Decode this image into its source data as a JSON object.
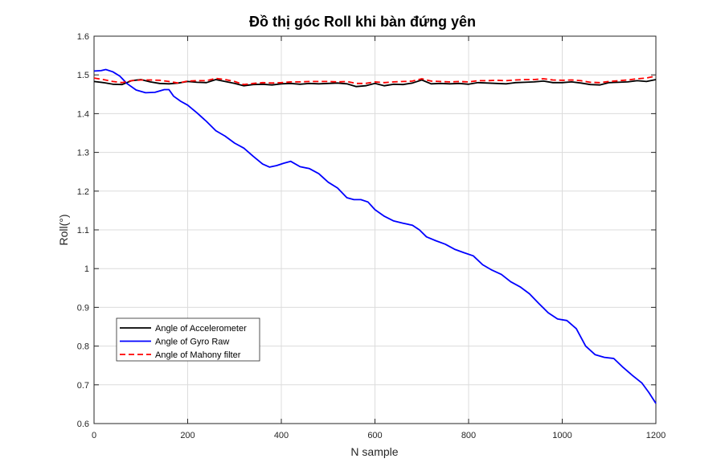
{
  "chart_data": {
    "type": "line",
    "title": "Đồ thị góc Roll khi bàn đứng yên",
    "xlabel": "N sample",
    "ylabel": "Roll(°)",
    "xlim": [
      0,
      1200
    ],
    "ylim": [
      0.6,
      1.6
    ],
    "xticks": [
      "0",
      "200",
      "400",
      "600",
      "800",
      "1000",
      "1200"
    ],
    "yticks": [
      "0.6",
      "0.7",
      "0.8",
      "0.9",
      "1",
      "1.1",
      "1.2",
      "1.3",
      "1.4",
      "1.5",
      "1.6"
    ],
    "grid": true,
    "legend_position": "bottom-left",
    "series": [
      {
        "name": "Angle of Accelerometer",
        "color": "#000000",
        "style": "solid",
        "x": [
          0,
          20,
          40,
          60,
          80,
          100,
          120,
          140,
          160,
          180,
          200,
          220,
          240,
          260,
          280,
          300,
          320,
          340,
          360,
          380,
          400,
          420,
          440,
          460,
          480,
          500,
          520,
          540,
          560,
          580,
          600,
          620,
          640,
          660,
          680,
          700,
          720,
          740,
          760,
          780,
          800,
          820,
          840,
          860,
          880,
          900,
          920,
          940,
          960,
          980,
          1000,
          1020,
          1040,
          1060,
          1080,
          1100,
          1120,
          1140,
          1160,
          1180,
          1200
        ],
        "y": [
          1.483,
          1.48,
          1.476,
          1.475,
          1.485,
          1.488,
          1.482,
          1.478,
          1.477,
          1.479,
          1.483,
          1.481,
          1.48,
          1.488,
          1.483,
          1.478,
          1.472,
          1.475,
          1.476,
          1.474,
          1.477,
          1.478,
          1.476,
          1.478,
          1.477,
          1.478,
          1.479,
          1.477,
          1.47,
          1.472,
          1.478,
          1.472,
          1.476,
          1.475,
          1.479,
          1.487,
          1.477,
          1.478,
          1.477,
          1.478,
          1.476,
          1.48,
          1.479,
          1.478,
          1.477,
          1.48,
          1.481,
          1.482,
          1.484,
          1.48,
          1.48,
          1.482,
          1.479,
          1.475,
          1.474,
          1.48,
          1.481,
          1.482,
          1.485,
          1.483,
          1.488
        ]
      },
      {
        "name": "Angle of Gyro Raw",
        "color": "#0000ff",
        "style": "solid",
        "x": [
          0,
          15,
          25,
          40,
          55,
          70,
          90,
          110,
          130,
          150,
          160,
          170,
          185,
          200,
          220,
          240,
          260,
          280,
          300,
          320,
          340,
          360,
          375,
          390,
          405,
          420,
          440,
          460,
          480,
          500,
          520,
          540,
          555,
          570,
          585,
          600,
          620,
          640,
          660,
          680,
          695,
          710,
          730,
          750,
          770,
          790,
          810,
          830,
          850,
          870,
          890,
          910,
          930,
          950,
          970,
          990,
          1010,
          1030,
          1050,
          1070,
          1090,
          1110,
          1130,
          1150,
          1170,
          1185,
          1200
        ],
        "y": [
          1.51,
          1.511,
          1.514,
          1.508,
          1.497,
          1.478,
          1.461,
          1.454,
          1.455,
          1.462,
          1.462,
          1.445,
          1.432,
          1.422,
          1.402,
          1.38,
          1.356,
          1.342,
          1.324,
          1.311,
          1.29,
          1.27,
          1.262,
          1.266,
          1.272,
          1.277,
          1.263,
          1.258,
          1.245,
          1.223,
          1.208,
          1.183,
          1.178,
          1.178,
          1.172,
          1.152,
          1.135,
          1.123,
          1.117,
          1.112,
          1.1,
          1.082,
          1.072,
          1.063,
          1.05,
          1.041,
          1.033,
          1.01,
          0.996,
          0.985,
          0.966,
          0.953,
          0.935,
          0.91,
          0.886,
          0.87,
          0.866,
          0.845,
          0.8,
          0.778,
          0.771,
          0.768,
          0.745,
          0.724,
          0.705,
          0.68,
          0.652
        ]
      },
      {
        "name": "Angle of Mahony filter",
        "color": "#ff0000",
        "style": "dashed",
        "x": [
          0,
          20,
          40,
          60,
          80,
          100,
          120,
          140,
          160,
          180,
          200,
          220,
          240,
          260,
          280,
          300,
          320,
          340,
          360,
          380,
          400,
          420,
          440,
          460,
          480,
          500,
          520,
          540,
          560,
          580,
          600,
          620,
          640,
          660,
          680,
          700,
          720,
          740,
          760,
          780,
          800,
          820,
          840,
          860,
          880,
          900,
          920,
          940,
          960,
          980,
          1000,
          1020,
          1040,
          1060,
          1080,
          1100,
          1120,
          1140,
          1160,
          1180,
          1200
        ],
        "y": [
          1.492,
          1.488,
          1.483,
          1.48,
          1.485,
          1.487,
          1.487,
          1.486,
          1.483,
          1.479,
          1.484,
          1.485,
          1.485,
          1.491,
          1.488,
          1.483,
          1.475,
          1.478,
          1.48,
          1.479,
          1.48,
          1.482,
          1.482,
          1.483,
          1.483,
          1.483,
          1.482,
          1.483,
          1.478,
          1.478,
          1.482,
          1.48,
          1.482,
          1.483,
          1.484,
          1.49,
          1.484,
          1.483,
          1.482,
          1.483,
          1.482,
          1.485,
          1.485,
          1.486,
          1.485,
          1.487,
          1.488,
          1.488,
          1.49,
          1.487,
          1.486,
          1.487,
          1.485,
          1.481,
          1.48,
          1.483,
          1.485,
          1.487,
          1.49,
          1.492,
          1.497
        ]
      }
    ]
  }
}
